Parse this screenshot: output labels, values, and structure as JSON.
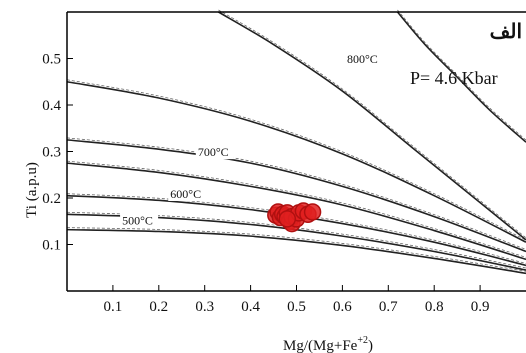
{
  "chart_data": {
    "type": "line",
    "panel_label": "الف",
    "pressure_label": "P= 4.6 Kbar",
    "xlabel": "Mg/(Mg+Fe",
    "xlabel_sup": "+2",
    "xlabel_end": ")",
    "ylabel": "Ti (a.p.u)",
    "xlim": [
      0,
      1.0
    ],
    "ylim": [
      0,
      0.6
    ],
    "x_ticks": [
      0.1,
      0.2,
      0.3,
      0.4,
      0.5,
      0.6,
      0.7,
      0.8,
      0.9
    ],
    "x_tick_labels": [
      "0.1",
      "0.2",
      "0.3",
      "0.4",
      "0.5",
      "0.6",
      "0.7",
      "0.8",
      "0.9"
    ],
    "y_ticks": [
      0.1,
      0.2,
      0.3,
      0.4,
      0.5
    ],
    "y_tick_labels": [
      "0.1",
      "0.2",
      "0.3",
      "0.4",
      "0.5"
    ],
    "isotherms": [
      {
        "label": "",
        "x": [
          0.0,
          0.2,
          0.4,
          0.6,
          0.8,
          1.0
        ],
        "y": [
          0.132,
          0.128,
          0.118,
          0.098,
          0.07,
          0.038
        ]
      },
      {
        "label": "500°C",
        "x": [
          0.0,
          0.2,
          0.4,
          0.6,
          0.8,
          1.0
        ],
        "y": [
          0.165,
          0.158,
          0.143,
          0.118,
          0.085,
          0.045
        ]
      },
      {
        "label": "",
        "x": [
          0.0,
          0.2,
          0.4,
          0.6,
          0.8,
          1.0
        ],
        "y": [
          0.205,
          0.195,
          0.175,
          0.145,
          0.105,
          0.055
        ]
      },
      {
        "label": "600°C",
        "x": [
          0.0,
          0.2,
          0.4,
          0.6,
          0.8,
          1.0
        ],
        "y": [
          0.275,
          0.255,
          0.225,
          0.185,
          0.13,
          0.068
        ]
      },
      {
        "label": "700°C",
        "x": [
          0.0,
          0.2,
          0.4,
          0.6,
          0.8,
          1.0
        ],
        "y": [
          0.325,
          0.305,
          0.275,
          0.225,
          0.16,
          0.085
        ]
      },
      {
        "label": "",
        "x": [
          0.0,
          0.2,
          0.4,
          0.6,
          0.8,
          1.0
        ],
        "y": [
          0.45,
          0.415,
          0.365,
          0.295,
          0.205,
          0.105
        ]
      },
      {
        "label": "800°C",
        "x": [
          0.33,
          0.45,
          0.6,
          0.75,
          0.9,
          1.0
        ],
        "y": [
          0.6,
          0.53,
          0.43,
          0.31,
          0.19,
          0.11
        ]
      },
      {
        "label": "",
        "x": [
          0.72,
          0.78,
          0.85,
          0.92,
          1.0
        ],
        "y": [
          0.6,
          0.53,
          0.46,
          0.39,
          0.32
        ]
      }
    ],
    "points": [
      {
        "x": 0.455,
        "y": 0.163
      },
      {
        "x": 0.46,
        "y": 0.17
      },
      {
        "x": 0.465,
        "y": 0.158
      },
      {
        "x": 0.47,
        "y": 0.165
      },
      {
        "x": 0.475,
        "y": 0.16
      },
      {
        "x": 0.48,
        "y": 0.168
      },
      {
        "x": 0.485,
        "y": 0.15
      },
      {
        "x": 0.49,
        "y": 0.145
      },
      {
        "x": 0.49,
        "y": 0.16
      },
      {
        "x": 0.5,
        "y": 0.155
      },
      {
        "x": 0.505,
        "y": 0.168
      },
      {
        "x": 0.515,
        "y": 0.172
      },
      {
        "x": 0.525,
        "y": 0.165
      },
      {
        "x": 0.535,
        "y": 0.17
      },
      {
        "x": 0.48,
        "y": 0.155
      }
    ],
    "point_color": "#e02020",
    "grid": false
  }
}
